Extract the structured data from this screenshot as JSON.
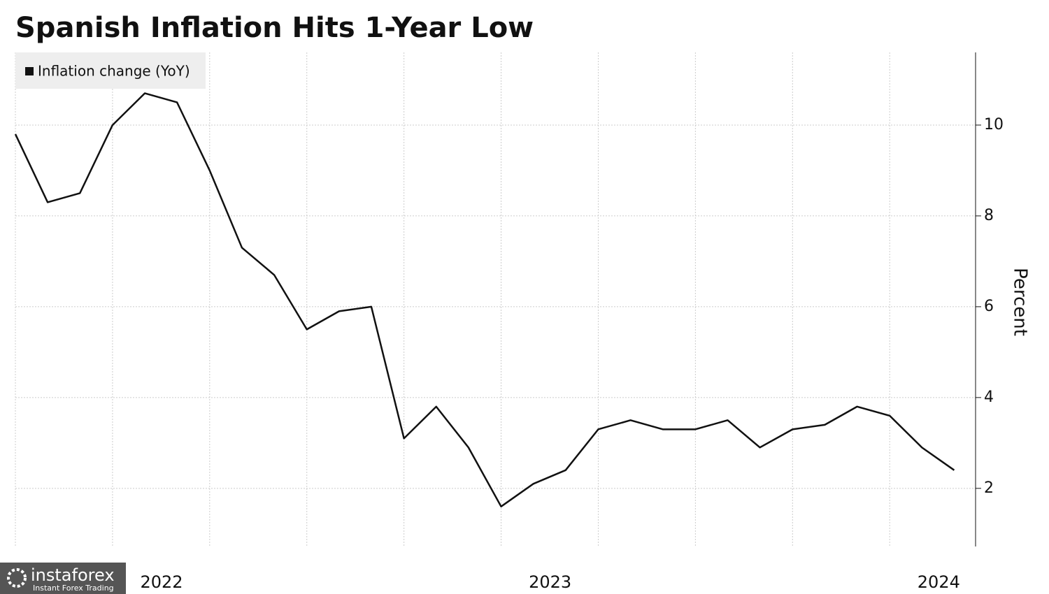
{
  "chart_data": {
    "type": "line",
    "title": "Spanish Inflation Hits 1-Year Low",
    "y_label": "Percent",
    "x": [
      2022.167,
      2022.25,
      2022.333,
      2022.417,
      2022.5,
      2022.583,
      2022.667,
      2022.75,
      2022.833,
      2022.917,
      2023.0,
      2023.083,
      2023.167,
      2023.25,
      2023.333,
      2023.417,
      2023.5,
      2023.583,
      2023.667,
      2023.75,
      2023.833,
      2023.917,
      2024.0,
      2024.083,
      2024.167,
      2024.25,
      2024.333,
      2024.417,
      2024.5,
      2024.583
    ],
    "series": [
      {
        "name": "Inflation change (YoY)",
        "color": "#111111",
        "values": [
          9.8,
          8.3,
          8.5,
          10.0,
          10.7,
          10.5,
          9.0,
          7.3,
          6.7,
          5.5,
          5.9,
          6.0,
          3.1,
          3.8,
          2.9,
          1.6,
          2.1,
          2.4,
          3.3,
          3.5,
          3.3,
          3.3,
          3.5,
          2.9,
          3.3,
          3.4,
          3.8,
          3.6,
          2.9,
          2.4
        ]
      }
    ],
    "xlim": [
      2022.167,
      2024.638
    ],
    "xticks": [
      {
        "value": 2022.5,
        "label": "2022"
      },
      {
        "value": 2023.5,
        "label": "2023"
      },
      {
        "value": 2024.5,
        "label": "2024"
      }
    ],
    "x_gridlines": [
      2022.167,
      2022.417,
      2022.667,
      2022.917,
      2023.167,
      2023.417,
      2023.667,
      2023.917,
      2024.167,
      2024.417
    ],
    "ylim": [
      0.72,
      11.6
    ],
    "yticks": [
      2,
      4,
      6,
      8,
      10
    ],
    "grid": true,
    "y_axis_side": "right",
    "legend": "top-left"
  },
  "watermark": {
    "brand": "instaforex",
    "tagline": "Instant Forex Trading"
  }
}
